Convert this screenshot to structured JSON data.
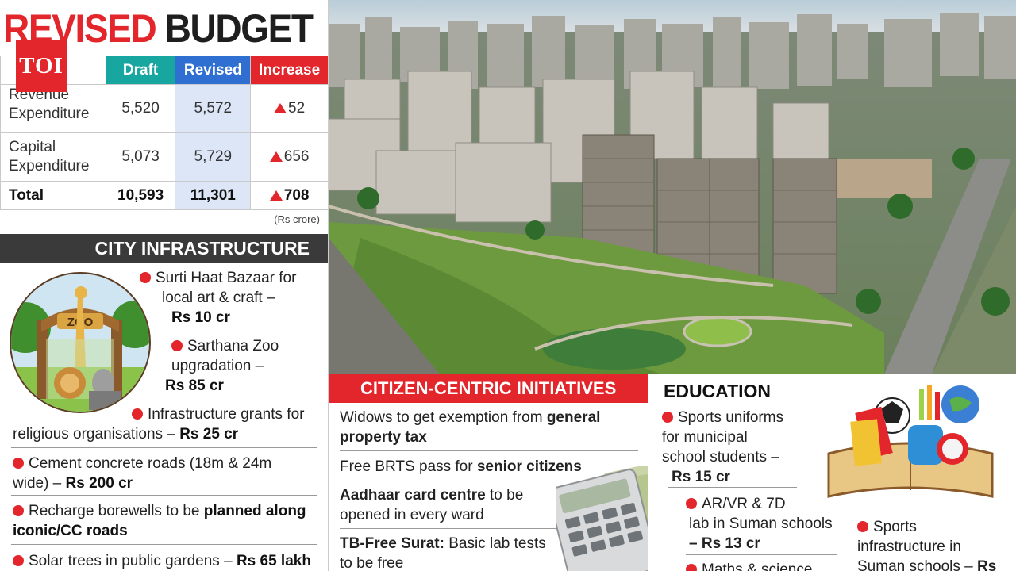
{
  "title": {
    "part1": "REVISED",
    "part2": "BUDGET"
  },
  "logo": "TOI",
  "table": {
    "headers": [
      "Draft",
      "Revised",
      "Increase"
    ],
    "rows": [
      {
        "label": "Revenue Expenditure",
        "draft": "5,520",
        "revised": "5,572",
        "increase": "52"
      },
      {
        "label": "Capital Expenditure",
        "draft": "5,073",
        "revised": "5,729",
        "increase": "656"
      },
      {
        "label": "Total",
        "draft": "10,593",
        "revised": "11,301",
        "increase": "708"
      }
    ],
    "unit": "(Rs crore)"
  },
  "city": {
    "heading": "CITY INFRASTRUCTURE",
    "zoo_sign": "ZOO",
    "items": [
      {
        "text1": "Surti Haat Bazaar for",
        "text2": "local art & craft –",
        "amount": "Rs 10 cr"
      },
      {
        "text1": "Sarthana Zoo",
        "text2": "upgradation –",
        "amount": "Rs 85 cr"
      },
      {
        "text1": "Infrastructure grants for",
        "text2": "religious organisations –",
        "amount": "Rs 25 cr"
      },
      {
        "text1": "Cement concrete roads (18m & 24m",
        "text2": "wide) –",
        "amount": "Rs 200 cr"
      },
      {
        "text1": "Recharge borewells to be",
        "bold1": "planned along",
        "bold2": "iconic/CC roads"
      },
      {
        "text1": "Solar trees in public gardens –",
        "amount": "Rs 65 lakh"
      }
    ]
  },
  "citizen": {
    "heading": "CITIZEN-CENTRIC INITIATIVES",
    "items": [
      {
        "text": "Widows to get exemption from",
        "bold": "general",
        "bold2": "property tax"
      },
      {
        "text": "Free BRTS pass for",
        "bold": "senior citizens"
      },
      {
        "bold": "Aadhaar card centre",
        "text": "to be",
        "text2": "opened in every ward"
      },
      {
        "bold": "TB-Free Surat:",
        "text": "Basic lab tests",
        "text2": "to be free"
      }
    ]
  },
  "education": {
    "heading": "EDUCATION",
    "items": [
      {
        "l1": "Sports uniforms",
        "l2": "for municipal",
        "l3": "school students –",
        "amount": "Rs 15 cr"
      },
      {
        "l1": "AR/VR & 7D",
        "l2": "lab in Suman schools",
        "amount": "– Rs 13 cr"
      },
      {
        "l1": "Maths & science"
      },
      {
        "l1": "Sports",
        "l2": "infrastructure in",
        "l3": "Suman schools –",
        "amount": "Rs"
      }
    ]
  },
  "colors": {
    "red": "#e3262b",
    "teal": "#18a7a0",
    "blue": "#2e6fd1",
    "dark": "#3a3a3a"
  }
}
